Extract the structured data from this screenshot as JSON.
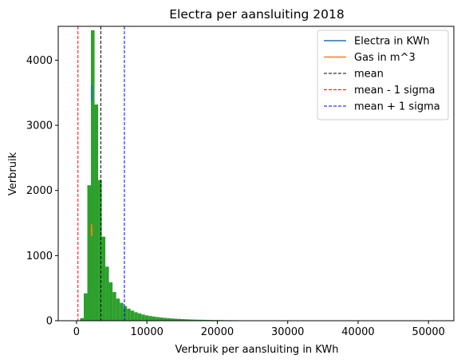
{
  "chart_data": {
    "type": "bar",
    "title": "Electra per aansluiting 2018",
    "xlabel": "Verbruik per aansluiting in KWh",
    "ylabel": "Verbruik",
    "xlim": [
      -2600,
      53600
    ],
    "ylim": [
      0,
      4520
    ],
    "xticks": [
      0,
      10000,
      20000,
      30000,
      40000,
      50000
    ],
    "xtick_labels": [
      "0",
      "10000",
      "20000",
      "30000",
      "40000",
      "50000"
    ],
    "yticks": [
      0,
      1000,
      2000,
      3000,
      4000
    ],
    "ytick_labels": [
      "0",
      "1000",
      "2000",
      "3000",
      "4000"
    ],
    "grid": false,
    "legend_position": "top-right",
    "colors": {
      "electra": "#1f77b4",
      "gas": "#ff7f0e",
      "histogram": "#2ca02c",
      "mean": "#000000",
      "minus_sigma": "#ff0000",
      "plus_sigma": "#0000ff"
    },
    "histogram": {
      "name": "",
      "bin_width": 512,
      "bin_start": 0,
      "values": [
        0,
        40,
        420,
        2080,
        4460,
        3320,
        2160,
        1290,
        830,
        590,
        440,
        340,
        275,
        225,
        185,
        155,
        130,
        112,
        95,
        82,
        72,
        64,
        56,
        50,
        44,
        39,
        35,
        31,
        28,
        25,
        22,
        20,
        18,
        16,
        15,
        14,
        13,
        12,
        11,
        10,
        9,
        8,
        8,
        7,
        7,
        6,
        6,
        5,
        5,
        5,
        4,
        4,
        4,
        4,
        3,
        3,
        3,
        3,
        3,
        2,
        2,
        2,
        2,
        2,
        2,
        2,
        2,
        2,
        1,
        1,
        1,
        1,
        1,
        1,
        1,
        1,
        1,
        1,
        1,
        1,
        1,
        1,
        1,
        1,
        1,
        1,
        1,
        1,
        1,
        1,
        1,
        1,
        1,
        1,
        1,
        1,
        1,
        1,
        1,
        1
      ]
    },
    "series": [
      {
        "name": "Electra in KWh",
        "segment": {
          "x": 2150,
          "y": [
            3380,
            3620
          ]
        }
      },
      {
        "name": "Gas in m^3",
        "segment": {
          "x": 2150,
          "y": [
            1300,
            1480
          ]
        }
      }
    ],
    "vlines": [
      {
        "name": "mean",
        "x": 3450,
        "style": "dashed"
      },
      {
        "name": "mean - 1 sigma",
        "x": 200,
        "style": "dashed"
      },
      {
        "name": "mean + 1 sigma",
        "x": 6800,
        "style": "dashed"
      }
    ]
  }
}
